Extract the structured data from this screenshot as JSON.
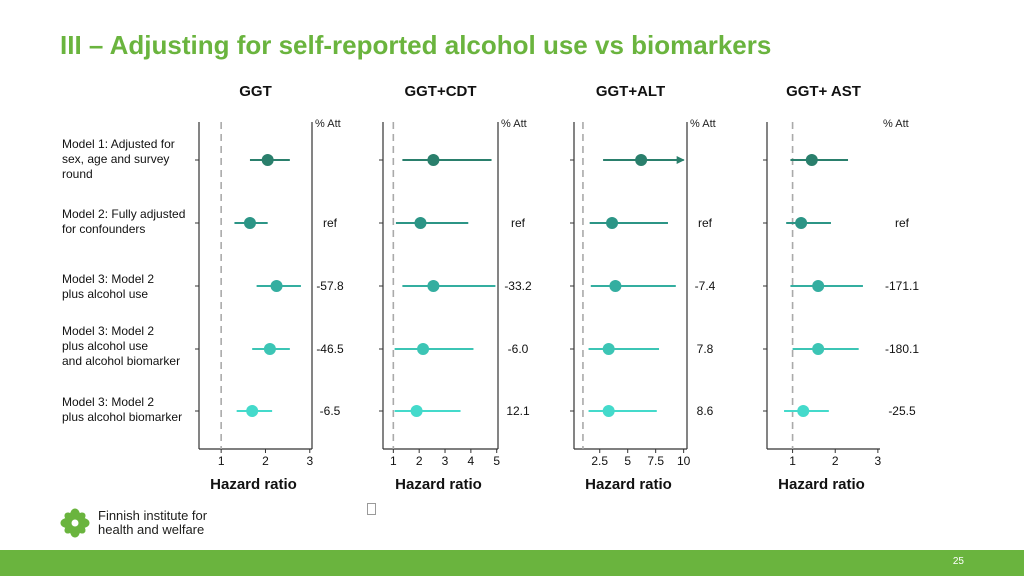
{
  "title": "III – Adjusting for self-reported alcohol use vs biomarkers",
  "models": [
    [
      "Model 1: Adjusted for",
      "sex, age and survey",
      "round"
    ],
    [
      "Model 2: Fully adjusted",
      "for confounders"
    ],
    [
      "Model 3: Model 2",
      "plus alcohol use"
    ],
    [
      "Model 3: Model 2",
      "plus alcohol use",
      "and alcohol biomarker"
    ],
    [
      "Model 3: Model 2",
      "plus alcohol biomarker"
    ]
  ],
  "colors": {
    "title": "#6ab43e",
    "footer": "#6ab43e",
    "ref_line": "#aaaaaa",
    "series": [
      "#2a7f6c",
      "#2c9586",
      "#34aea0",
      "#3cc5b5",
      "#44dacb"
    ]
  },
  "logo": {
    "icon": "leaf-flower-icon",
    "line1": "Finnish institute for",
    "line2": "health and welfare"
  },
  "page_number": "25",
  "chart_data": [
    {
      "type": "forest",
      "title": "GGT",
      "xlabel": "Hazard ratio",
      "att_header": "% Att",
      "xlim": [
        0.5,
        3.05
      ],
      "ref_value": 1,
      "ticks": [
        1,
        2,
        3
      ],
      "tick_labels": [
        "1",
        "2",
        "3"
      ],
      "points": [
        {
          "est": 2.05,
          "lo": 1.65,
          "hi": 2.55
        },
        {
          "est": 1.65,
          "lo": 1.3,
          "hi": 2.05
        },
        {
          "est": 2.25,
          "lo": 1.8,
          "hi": 2.8
        },
        {
          "est": 2.1,
          "lo": 1.7,
          "hi": 2.55
        },
        {
          "est": 1.7,
          "lo": 1.35,
          "hi": 2.15
        }
      ],
      "att": [
        "",
        "ref",
        "-57.8",
        "-46.5",
        "-6.5"
      ]
    },
    {
      "type": "forest",
      "title": "GGT+CDT",
      "xlabel": "Hazard ratio",
      "att_header": "% Att",
      "xlim": [
        0.6,
        5.05
      ],
      "ref_value": 1,
      "ticks": [
        1,
        2,
        3,
        4,
        5
      ],
      "tick_labels": [
        "1",
        "2",
        "3",
        "4",
        "5"
      ],
      "points": [
        {
          "est": 2.55,
          "lo": 1.35,
          "hi": 4.8
        },
        {
          "est": 2.05,
          "lo": 1.1,
          "hi": 3.9
        },
        {
          "est": 2.55,
          "lo": 1.35,
          "hi": 4.95
        },
        {
          "est": 2.15,
          "lo": 1.05,
          "hi": 4.1
        },
        {
          "est": 1.9,
          "lo": 1.05,
          "hi": 3.6
        }
      ],
      "att": [
        "",
        "ref",
        "-33.2",
        "-6.0",
        "12.1"
      ]
    },
    {
      "type": "forest",
      "title": "GGT+ALT",
      "xlabel": "Hazard ratio",
      "att_header": "% Att",
      "xlim": [
        0.2,
        10.3
      ],
      "ref_value": 1,
      "ticks": [
        2.5,
        5,
        7.5,
        10
      ],
      "tick_labels": [
        "2.5",
        "5",
        "7.5",
        "10"
      ],
      "points": [
        {
          "est": 6.2,
          "lo": 2.8,
          "hi": 10.0,
          "arrow": true
        },
        {
          "est": 3.6,
          "lo": 1.6,
          "hi": 8.6
        },
        {
          "est": 3.9,
          "lo": 1.7,
          "hi": 9.3
        },
        {
          "est": 3.3,
          "lo": 1.5,
          "hi": 7.8
        },
        {
          "est": 3.3,
          "lo": 1.5,
          "hi": 7.6
        }
      ],
      "att": [
        "",
        "ref",
        "-7.4",
        "7.8",
        "8.6"
      ]
    },
    {
      "type": "forest",
      "title": "GGT+ AST",
      "xlabel": "Hazard ratio",
      "att_header": "% Att",
      "xlim": [
        0.4,
        3.05
      ],
      "ref_value": 1,
      "ticks": [
        1,
        2,
        3
      ],
      "tick_labels": [
        "1",
        "2",
        "3"
      ],
      "points": [
        {
          "est": 1.45,
          "lo": 0.95,
          "hi": 2.3
        },
        {
          "est": 1.2,
          "lo": 0.85,
          "hi": 1.9
        },
        {
          "est": 1.6,
          "lo": 0.95,
          "hi": 2.65
        },
        {
          "est": 1.6,
          "lo": 1.0,
          "hi": 2.55
        },
        {
          "est": 1.25,
          "lo": 0.8,
          "hi": 1.85
        }
      ],
      "att": [
        "",
        "ref",
        "-171.1",
        "-180.1",
        "-25.5"
      ]
    }
  ]
}
